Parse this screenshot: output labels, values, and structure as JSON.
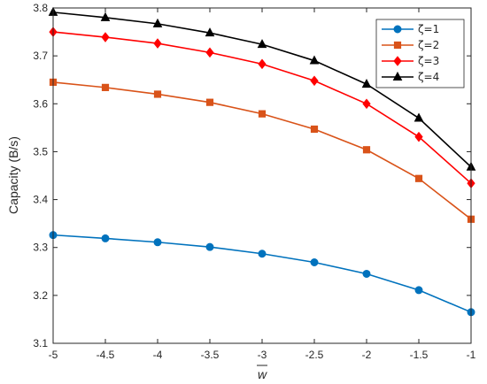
{
  "chart_data": {
    "type": "line",
    "xlabel": "w",
    "ylabel": "Capacity (B/s)",
    "xlim": [
      -5,
      -1
    ],
    "ylim": [
      3.1,
      3.8
    ],
    "grid": false,
    "legend_position": "top-right",
    "x": [
      -5,
      -4.5,
      -4,
      -3.5,
      -3,
      -2.5,
      -2,
      -1.5,
      -1
    ],
    "x_tick_labels": [
      "-5",
      "-4.5",
      "-4",
      "-3.5",
      "-3",
      "-2.5",
      "-2",
      "-1.5",
      "-1"
    ],
    "y_ticks": [
      3.1,
      3.2,
      3.3,
      3.4,
      3.5,
      3.6,
      3.7,
      3.8
    ],
    "y_tick_labels": [
      "3.1",
      "3.2",
      "3.3",
      "3.4",
      "3.5",
      "3.6",
      "3.7",
      "3.8"
    ],
    "series": [
      {
        "name": "ζ=1",
        "color": "#0072BD",
        "marker": "circle",
        "values": [
          3.326,
          3.319,
          3.311,
          3.301,
          3.287,
          3.269,
          3.245,
          3.211,
          3.165
        ]
      },
      {
        "name": "ζ=2",
        "color": "#D95319",
        "marker": "square",
        "values": [
          3.645,
          3.634,
          3.62,
          3.603,
          3.579,
          3.547,
          3.504,
          3.444,
          3.359
        ]
      },
      {
        "name": "ζ=3",
        "color": "#FF0000",
        "marker": "diamond",
        "values": [
          3.75,
          3.739,
          3.726,
          3.707,
          3.683,
          3.648,
          3.6,
          3.531,
          3.434
        ]
      },
      {
        "name": "ζ=4",
        "color": "#000000",
        "marker": "triangle",
        "values": [
          3.791,
          3.78,
          3.767,
          3.748,
          3.724,
          3.69,
          3.641,
          3.57,
          3.468
        ]
      }
    ]
  }
}
